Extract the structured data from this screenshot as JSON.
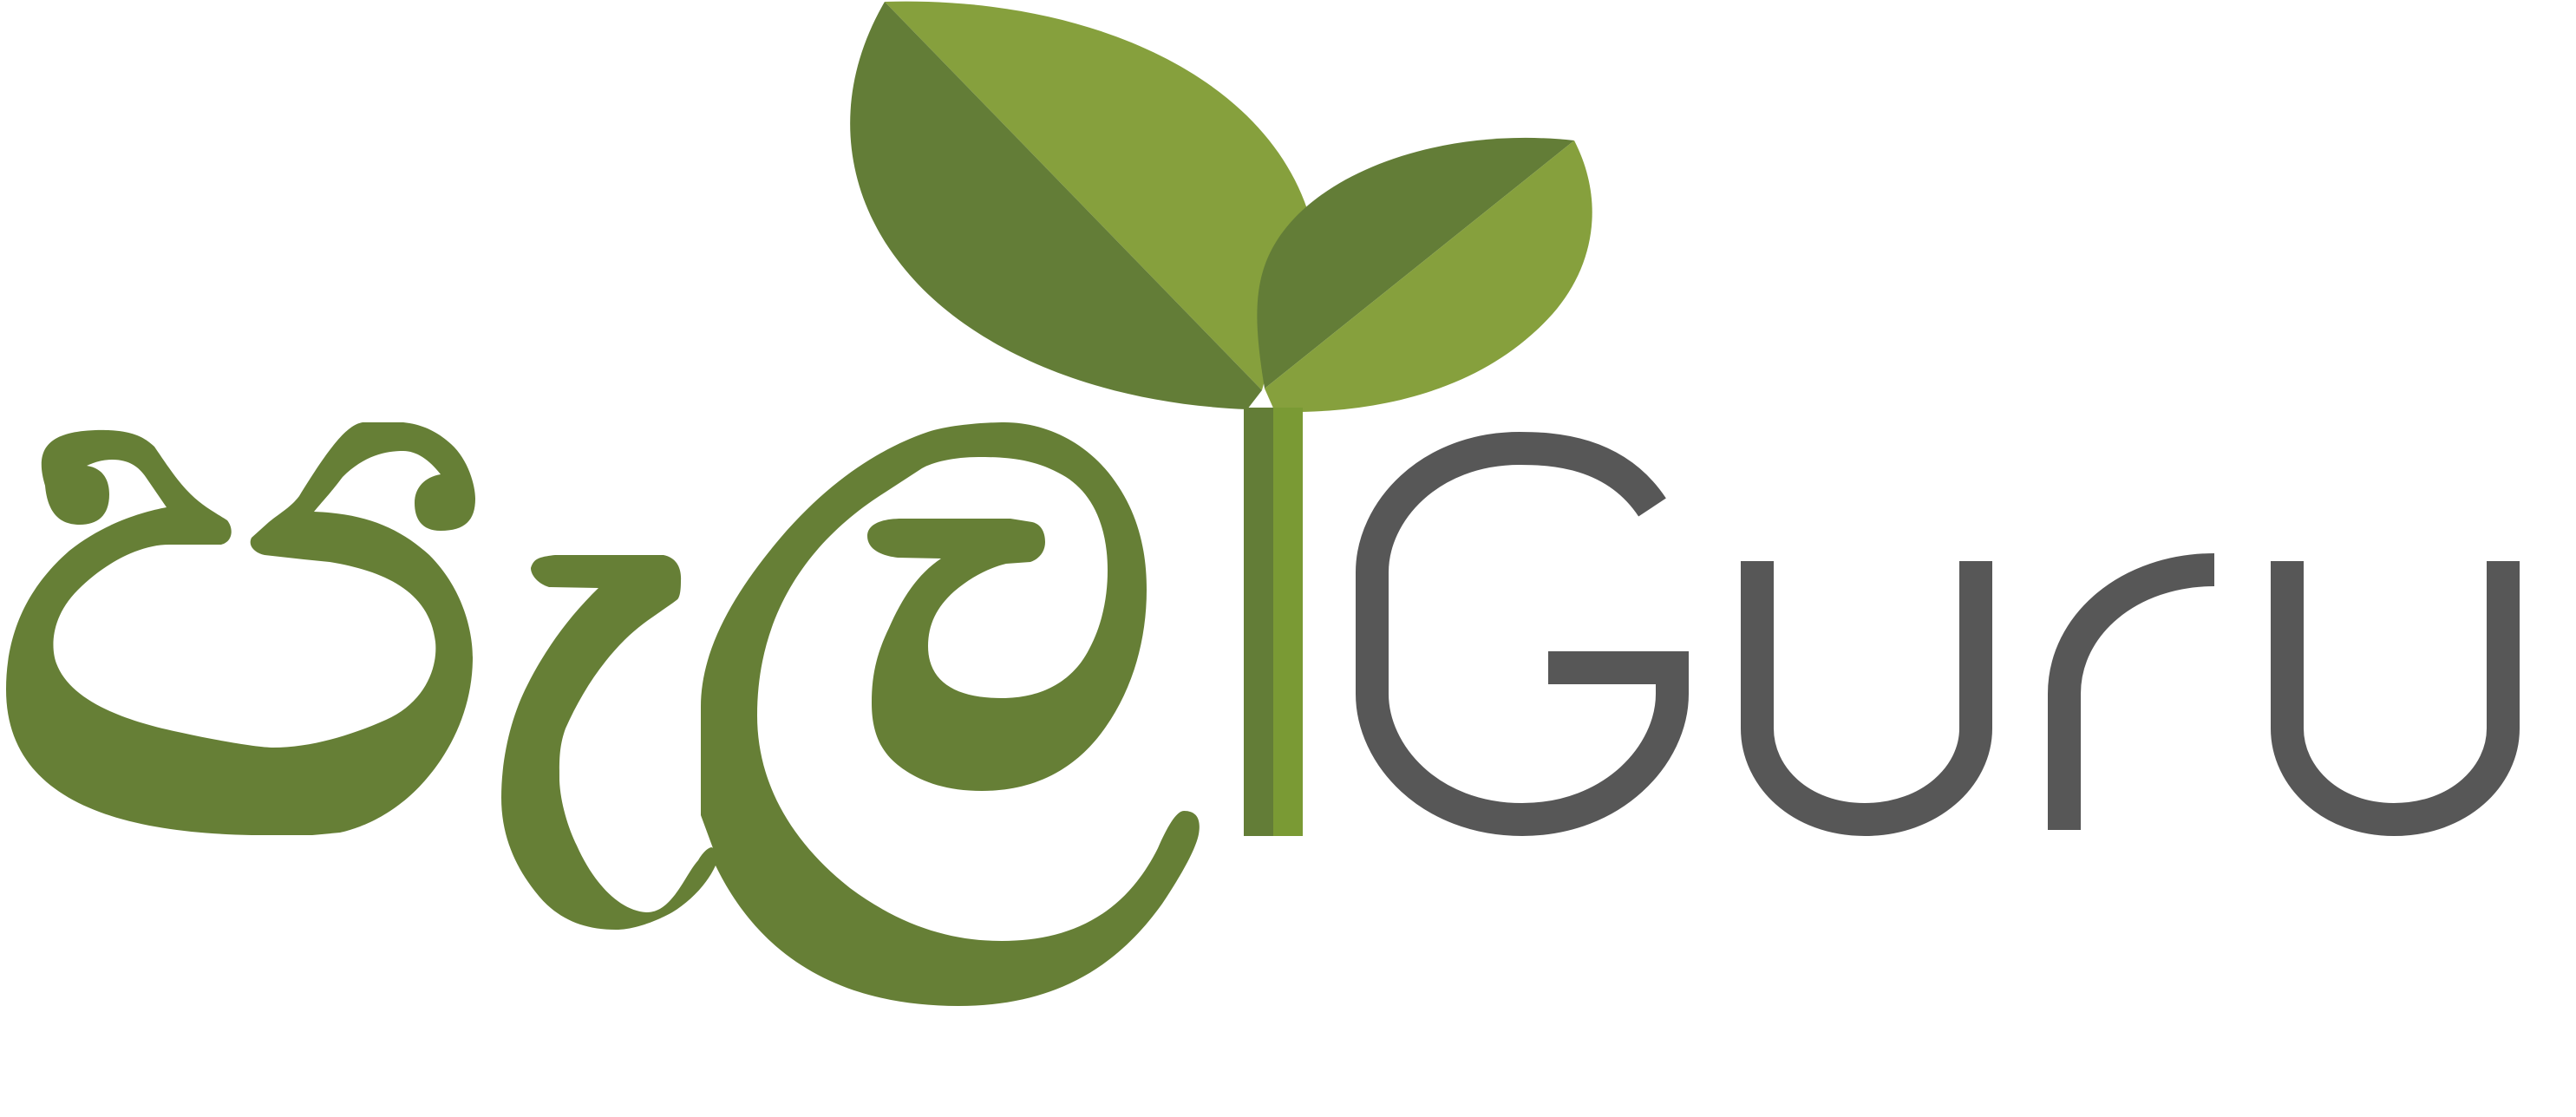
{
  "logo": {
    "wordmark_latin": "Guru",
    "wordmark_sinhala_glyphs": "උගු",
    "full_name": "උගුGuru"
  },
  "colors": {
    "leaf_dark": "#637d37",
    "leaf_light": "#86a03d",
    "stem_dark": "#637d37",
    "stem_light": "#7a9a34",
    "sinhala_text": "#667f36",
    "latin_text": "#575757",
    "background": "#ffffff"
  },
  "icons": {
    "plant": "sprout-icon"
  }
}
